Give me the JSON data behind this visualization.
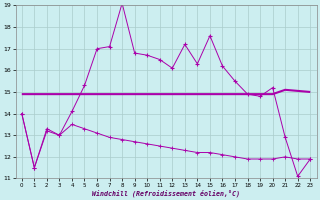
{
  "xlabel": "Windchill (Refroidissement éolien,°C)",
  "bg_color": "#cceef0",
  "grid_color": "#aacccc",
  "line_color": "#aa00aa",
  "xlim_min": -0.5,
  "xlim_max": 23.5,
  "ylim_min": 11,
  "ylim_max": 19,
  "yticks": [
    11,
    12,
    13,
    14,
    15,
    16,
    17,
    18,
    19
  ],
  "xticks": [
    0,
    1,
    2,
    3,
    4,
    5,
    6,
    7,
    8,
    9,
    10,
    11,
    12,
    13,
    14,
    15,
    16,
    17,
    18,
    19,
    20,
    21,
    22,
    23
  ],
  "line1_x": [
    0,
    1,
    2,
    3,
    4,
    5,
    6,
    7,
    8,
    9,
    10,
    11,
    12,
    13,
    14,
    15,
    16,
    17,
    18,
    19,
    20,
    21,
    22,
    23
  ],
  "line1_y": [
    14.0,
    11.5,
    13.3,
    13.0,
    14.1,
    15.3,
    17.0,
    17.1,
    19.1,
    16.8,
    16.7,
    16.5,
    16.1,
    17.2,
    16.3,
    17.6,
    16.2,
    15.5,
    14.9,
    14.8,
    15.2,
    12.9,
    11.1,
    11.9
  ],
  "line2_x": [
    0,
    20,
    21,
    23
  ],
  "line2_y": [
    14.9,
    14.9,
    15.1,
    15.0
  ],
  "line3_x": [
    0,
    1,
    2,
    3,
    4,
    5,
    6,
    7,
    8,
    9,
    10,
    11,
    12,
    13,
    14,
    15,
    16,
    17,
    18,
    19,
    20,
    21,
    22,
    23
  ],
  "line3_y": [
    14.0,
    11.5,
    13.2,
    13.0,
    13.5,
    13.3,
    13.1,
    12.9,
    12.8,
    12.7,
    12.6,
    12.5,
    12.4,
    12.3,
    12.2,
    12.2,
    12.1,
    12.0,
    11.9,
    11.9,
    11.9,
    12.0,
    11.9,
    11.9
  ]
}
